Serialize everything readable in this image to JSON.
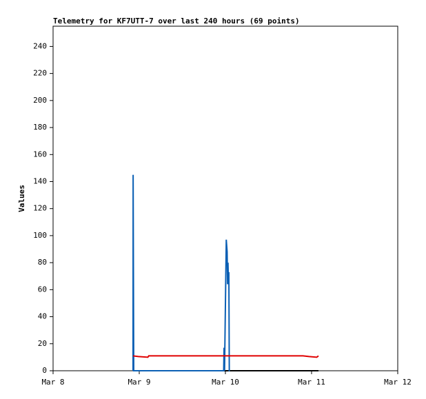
{
  "chart_data": {
    "type": "line",
    "title": "Telemetry for KF7UTT-7 over last 240 hours (69 points)",
    "y_label": "Values",
    "xlim": [
      0,
      4
    ],
    "xticks": [
      {
        "value": 0,
        "label": "Mar 8"
      },
      {
        "value": 1,
        "label": "Mar 9"
      },
      {
        "value": 2,
        "label": "Mar 10"
      },
      {
        "value": 3,
        "label": "Mar 11"
      },
      {
        "value": 4,
        "label": "Mar 12"
      }
    ],
    "ylim": [
      0,
      255
    ],
    "yticks": [
      0,
      20,
      40,
      60,
      80,
      100,
      120,
      140,
      160,
      180,
      200,
      220,
      240
    ],
    "series": [
      {
        "color": "#000000",
        "x": [
          0.928,
          3.08
        ],
        "values": [
          0,
          0
        ]
      },
      {
        "color": "#0a5fb4",
        "x": [
          0.928,
          0.929,
          0.936,
          1.98,
          1.984,
          1.99,
          2.01,
          2.02,
          2.025,
          2.03,
          2.035,
          2.04,
          2.045,
          2.05
        ],
        "values": [
          0,
          145,
          0,
          0,
          17,
          0,
          97,
          88,
          64,
          80,
          66,
          73,
          0,
          0
        ]
      },
      {
        "color": "#e00000",
        "x": [
          0.928,
          0.99,
          1.1,
          1.11,
          2.9,
          2.97,
          3.06,
          3.08
        ],
        "values": [
          11,
          10.5,
          10,
          11,
          11,
          10.5,
          10,
          11
        ]
      }
    ]
  }
}
